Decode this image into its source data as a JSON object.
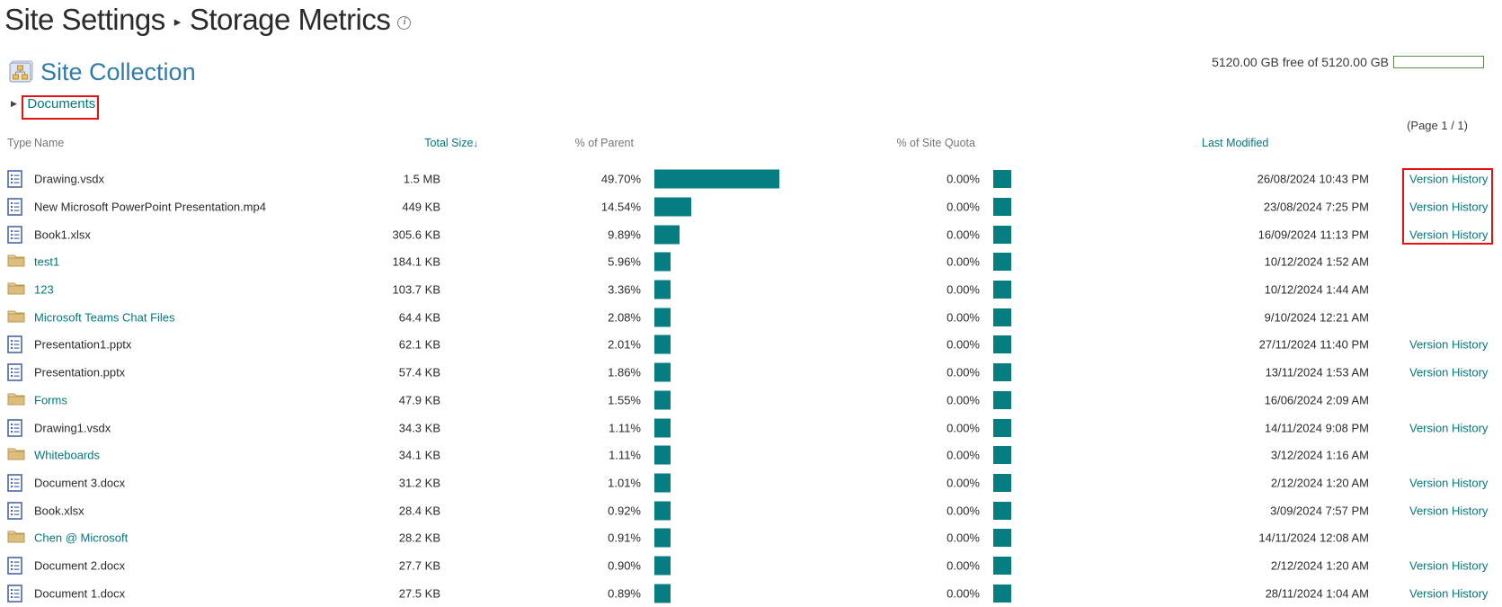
{
  "page": {
    "title_part1": "Site Settings",
    "title_part2": "Storage Metrics",
    "info_icon_glyph": "i",
    "storage_summary": "5120.00 GB free of 5120.00 GB",
    "site_collection_label": "Site Collection",
    "breadcrumb_item": "Documents",
    "page_indicator": "(Page 1 / 1)"
  },
  "colors": {
    "link_teal": "#03787c",
    "bar_teal": "#067d80",
    "heading_blue": "#2f7cab",
    "highlight_red": "#e81111",
    "quota_bar_green": "#5b8a52",
    "header_gray": "#767676",
    "folder_yellow": "#dcbe7a",
    "file_icon_blue": "#4a66a8"
  },
  "table": {
    "headers": {
      "type": "Type",
      "name": "Name",
      "total_size": "Total Size",
      "sort_arrow": "↓",
      "percent_of_parent": "% of Parent",
      "percent_of_site_quota": "% of Site Quota",
      "last_modified": "Last Modified"
    },
    "version_history_label": "Version History",
    "rows": [
      {
        "type": "file",
        "name": "Drawing.vsdx",
        "size": "1.5 MB",
        "parent_pct": "49.70%",
        "parent_pct_value": 49.7,
        "quota_pct": "0.00%",
        "modified": "26/08/2024 10:43 PM",
        "version_history": true
      },
      {
        "type": "file",
        "name": "New Microsoft PowerPoint Presentation.mp4",
        "size": "449 KB",
        "parent_pct": "14.54%",
        "parent_pct_value": 14.54,
        "quota_pct": "0.00%",
        "modified": "23/08/2024 7:25 PM",
        "version_history": true
      },
      {
        "type": "file",
        "name": "Book1.xlsx",
        "size": "305.6 KB",
        "parent_pct": "9.89%",
        "parent_pct_value": 9.89,
        "quota_pct": "0.00%",
        "modified": "16/09/2024 11:13 PM",
        "version_history": true
      },
      {
        "type": "folder",
        "name": "test1",
        "size": "184.1 KB",
        "parent_pct": "5.96%",
        "parent_pct_value": 5.96,
        "quota_pct": "0.00%",
        "modified": "10/12/2024 1:52 AM",
        "version_history": false
      },
      {
        "type": "folder",
        "name": "123",
        "size": "103.7 KB",
        "parent_pct": "3.36%",
        "parent_pct_value": 3.36,
        "quota_pct": "0.00%",
        "modified": "10/12/2024 1:44 AM",
        "version_history": false
      },
      {
        "type": "folder",
        "name": "Microsoft Teams Chat Files",
        "size": "64.4 KB",
        "parent_pct": "2.08%",
        "parent_pct_value": 2.08,
        "quota_pct": "0.00%",
        "modified": "9/10/2024 12:21 AM",
        "version_history": false
      },
      {
        "type": "file",
        "name": "Presentation1.pptx",
        "size": "62.1 KB",
        "parent_pct": "2.01%",
        "parent_pct_value": 2.01,
        "quota_pct": "0.00%",
        "modified": "27/11/2024 11:40 PM",
        "version_history": true
      },
      {
        "type": "file",
        "name": "Presentation.pptx",
        "size": "57.4 KB",
        "parent_pct": "1.86%",
        "parent_pct_value": 1.86,
        "quota_pct": "0.00%",
        "modified": "13/11/2024 1:53 AM",
        "version_history": true
      },
      {
        "type": "folder",
        "name": "Forms",
        "size": "47.9 KB",
        "parent_pct": "1.55%",
        "parent_pct_value": 1.55,
        "quota_pct": "0.00%",
        "modified": "16/06/2024 2:09 AM",
        "version_history": false
      },
      {
        "type": "file",
        "name": "Drawing1.vsdx",
        "size": "34.3 KB",
        "parent_pct": "1.11%",
        "parent_pct_value": 1.11,
        "quota_pct": "0.00%",
        "modified": "14/11/2024 9:08 PM",
        "version_history": true
      },
      {
        "type": "folder",
        "name": "Whiteboards",
        "size": "34.1 KB",
        "parent_pct": "1.11%",
        "parent_pct_value": 1.11,
        "quota_pct": "0.00%",
        "modified": "3/12/2024 1:16 AM",
        "version_history": false
      },
      {
        "type": "file",
        "name": "Document 3.docx",
        "size": "31.2 KB",
        "parent_pct": "1.01%",
        "parent_pct_value": 1.01,
        "quota_pct": "0.00%",
        "modified": "2/12/2024 1:20 AM",
        "version_history": true
      },
      {
        "type": "file",
        "name": "Book.xlsx",
        "size": "28.4 KB",
        "parent_pct": "0.92%",
        "parent_pct_value": 0.92,
        "quota_pct": "0.00%",
        "modified": "3/09/2024 7:57 PM",
        "version_history": true
      },
      {
        "type": "folder",
        "name": "Chen @ Microsoft",
        "size": "28.2 KB",
        "parent_pct": "0.91%",
        "parent_pct_value": 0.91,
        "quota_pct": "0.00%",
        "modified": "14/11/2024 12:08 AM",
        "version_history": false
      },
      {
        "type": "file",
        "name": "Document 2.docx",
        "size": "27.7 KB",
        "parent_pct": "0.90%",
        "parent_pct_value": 0.9,
        "quota_pct": "0.00%",
        "modified": "2/12/2024 1:20 AM",
        "version_history": true
      },
      {
        "type": "file",
        "name": "Document 1.docx",
        "size": "27.5 KB",
        "parent_pct": "0.89%",
        "parent_pct_value": 0.89,
        "quota_pct": "0.00%",
        "modified": "28/11/2024 1:04 AM",
        "version_history": true
      }
    ]
  }
}
